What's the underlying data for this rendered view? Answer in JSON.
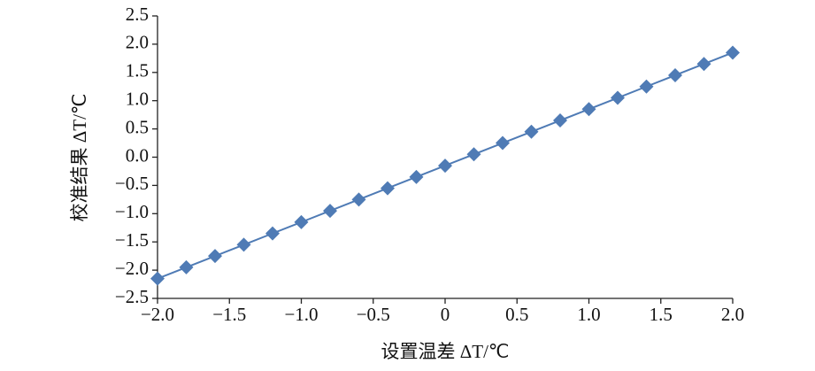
{
  "chart_data": {
    "type": "line",
    "xlabel": "设置温差 ΔT/℃",
    "ylabel": "校准结果 ΔT/℃",
    "x": [
      -2,
      -1.8,
      -1.6,
      -1.4,
      -1.2,
      -1,
      -0.8,
      -0.6,
      -0.4,
      -0.2,
      0,
      0.2,
      0.4,
      0.6,
      0.8,
      1,
      1.2,
      1.4,
      1.6,
      1.8,
      2
    ],
    "values": [
      -2.15,
      -1.95,
      -1.75,
      -1.55,
      -1.35,
      -1.15,
      -0.95,
      -0.75,
      -0.55,
      -0.35,
      -0.15,
      0.05,
      0.25,
      0.45,
      0.65,
      0.85,
      1.05,
      1.25,
      1.45,
      1.65,
      1.85
    ],
    "color": "#4f7bb5",
    "marker": "diamond",
    "xlim": [
      -2,
      2
    ],
    "xticks": [
      {
        "value": -2,
        "label": "−2.0"
      },
      {
        "value": -1.5,
        "label": "−1.5"
      },
      {
        "value": -1,
        "label": "−1.0"
      },
      {
        "value": -0.5,
        "label": "−0.5"
      },
      0,
      0.5,
      {
        "value": 1,
        "label": "1.0"
      },
      1.5,
      {
        "value": 2,
        "label": "2.0"
      }
    ],
    "ylim": [
      -2.5,
      2.5
    ],
    "yticks": [
      {
        "value": -2.5,
        "label": "−2.5"
      },
      {
        "value": -2,
        "label": "−2.0"
      },
      {
        "value": -1.5,
        "label": "−1.5"
      },
      {
        "value": -1,
        "label": "−1.0"
      },
      {
        "value": -0.5,
        "label": "−0.5"
      },
      {
        "value": 0,
        "label": "0.0"
      },
      0.5,
      {
        "value": 1,
        "label": "1.0"
      },
      1.5,
      {
        "value": 2,
        "label": "2.0"
      },
      2.5
    ],
    "grid": false
  }
}
